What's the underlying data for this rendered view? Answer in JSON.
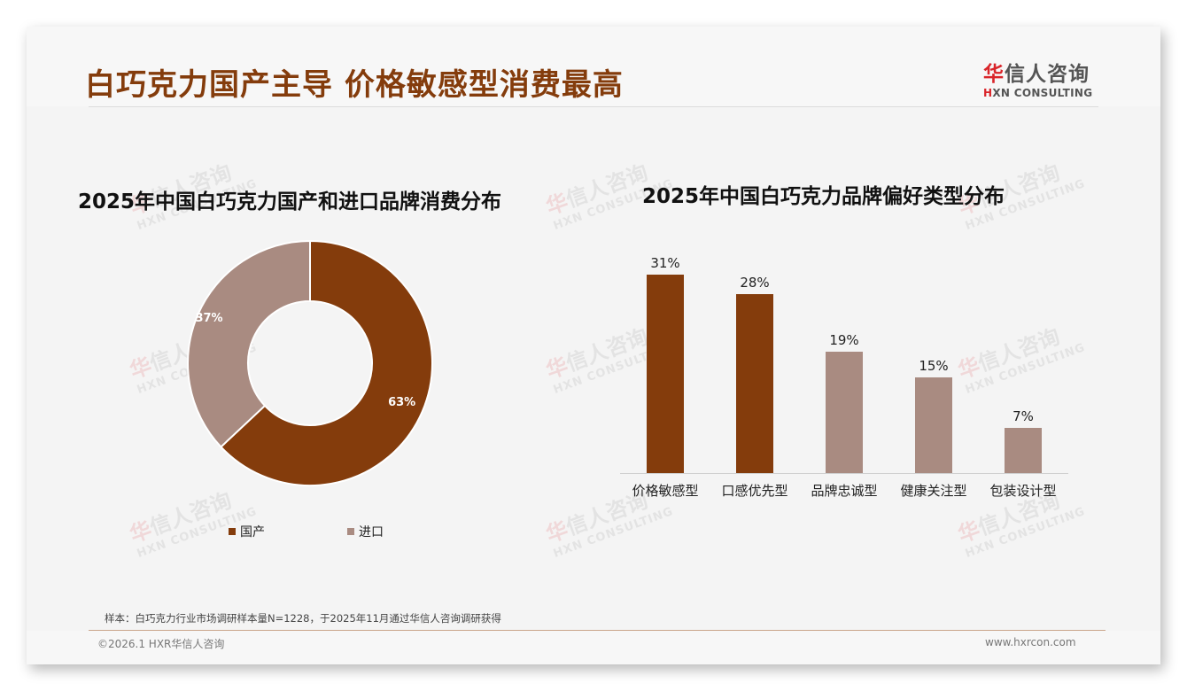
{
  "header": {
    "title": "白巧克力国产主导 价格敏感型消费最高",
    "logo_cn_red": "华",
    "logo_cn_rest": "信人咨询",
    "logo_en_red": "H",
    "logo_en_rest": "XN CONSULTING"
  },
  "watermark": {
    "cn_red": "华",
    "cn_rest": "信人咨询",
    "en": "HXN CONSULTING"
  },
  "colors": {
    "title": "#843c0c",
    "domestic": "#843c0c",
    "imported": "#a98b81",
    "highlight_bar": "#843c0c",
    "other_bar": "#a98b81",
    "background": "#f4f4f4"
  },
  "donut": {
    "title": "2025年中国白巧克力国产和进口品牌消费分布",
    "slices": [
      {
        "label": "国产",
        "value": 63,
        "display": "63%"
      },
      {
        "label": "进口",
        "value": 37,
        "display": "37%"
      }
    ]
  },
  "bars": {
    "title": "2025年中国白巧克力品牌偏好类型分布",
    "items": [
      {
        "label": "价格敏感型",
        "value": 31,
        "display": "31%"
      },
      {
        "label": "口感优先型",
        "value": 28,
        "display": "28%"
      },
      {
        "label": "品牌忠诚型",
        "value": 19,
        "display": "19%"
      },
      {
        "label": "健康关注型",
        "value": 15,
        "display": "15%"
      },
      {
        "label": "包装设计型",
        "value": 7,
        "display": "7%"
      }
    ]
  },
  "chart_data": [
    {
      "type": "pie",
      "title": "2025年中国白巧克力国产和进口品牌消费分布",
      "categories": [
        "国产",
        "进口"
      ],
      "values": [
        63,
        37
      ],
      "unit": "%",
      "donut": true,
      "legend_position": "bottom"
    },
    {
      "type": "bar",
      "title": "2025年中国白巧克力品牌偏好类型分布",
      "categories": [
        "价格敏感型",
        "口感优先型",
        "品牌忠诚型",
        "健康关注型",
        "包装设计型"
      ],
      "values": [
        31,
        28,
        19,
        15,
        7
      ],
      "unit": "%",
      "xlabel": "",
      "ylabel": "",
      "ylim": [
        0,
        35
      ],
      "grid": false,
      "data_labels": true
    }
  ],
  "footer": {
    "footnote": "样本：白巧克力行业市场调研样本量N=1228，于2025年11月通过华信人咨询调研获得",
    "copyright": "©2026.1 HXR华信人咨询",
    "website": "www.hxrcon.com"
  }
}
